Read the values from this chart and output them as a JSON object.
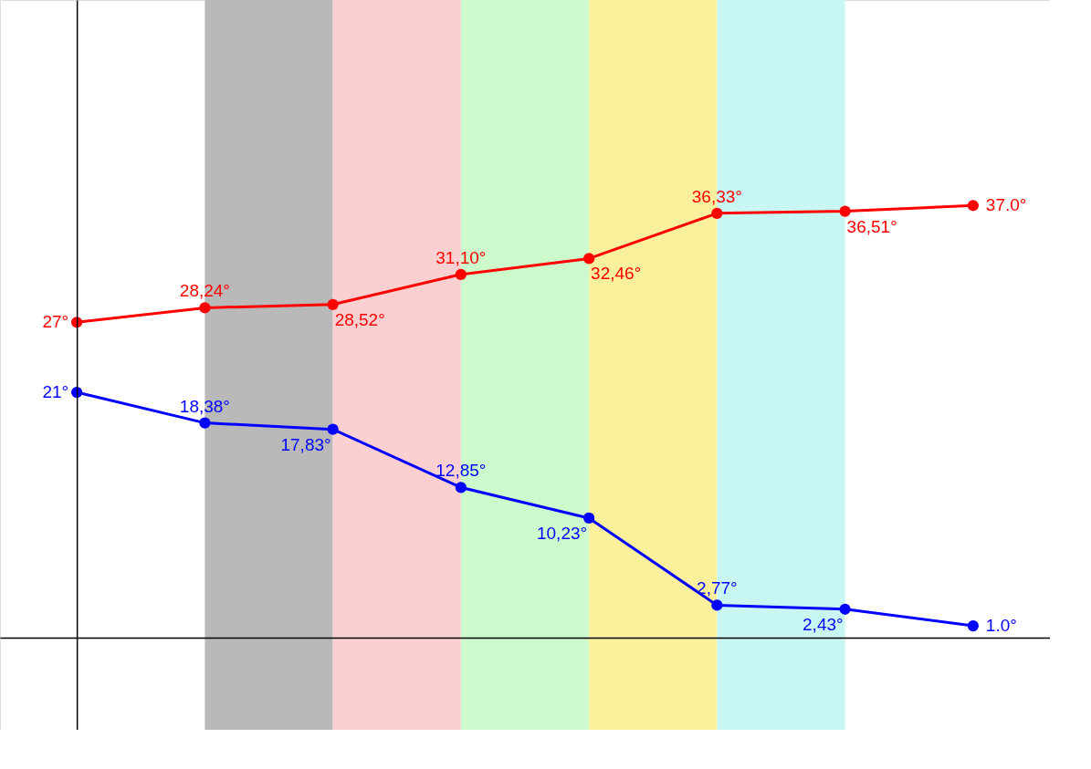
{
  "chart_data": {
    "type": "line",
    "categories": [
      null,
      null,
      null,
      null,
      null,
      null,
      null,
      null
    ],
    "ylim": [
      -7.9,
      54.6
    ],
    "tick_labels": false,
    "grid": false,
    "marker": "circle",
    "line_style": "solid",
    "series": [
      {
        "color": "#ff0000",
        "values": [
          27,
          28.24,
          28.52,
          31.1,
          32.46,
          36.33,
          36.51,
          37.0
        ],
        "value_labels": [
          "27°",
          "28,24°",
          "28,52°",
          "31,10°",
          "32,46°",
          "36,33°",
          "36,51°",
          "37.0°"
        ]
      },
      {
        "color": "#0000ff",
        "values": [
          21,
          18.38,
          17.83,
          12.85,
          10.23,
          2.77,
          2.43,
          1.0
        ],
        "value_labels": [
          "21°",
          "18,38°",
          "17,83°",
          "12,85°",
          "10,23°",
          "2,77°",
          "2,43°",
          "1.0°"
        ]
      }
    ]
  }
}
